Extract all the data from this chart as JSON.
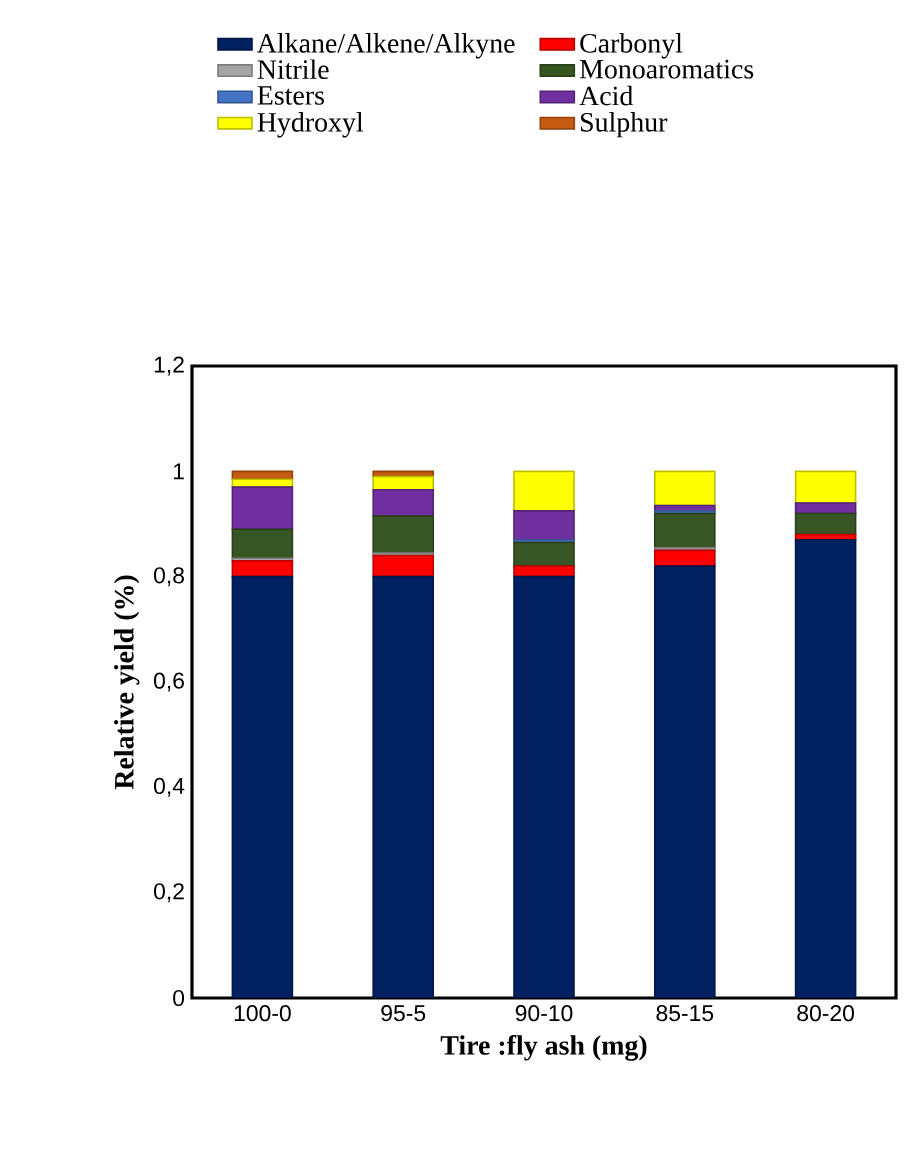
{
  "chart_data": {
    "type": "bar",
    "stacked": true,
    "legend": "top",
    "xlabel": "Tire :fly ash (mg)",
    "ylabel": "Relative yield (%)",
    "categories": [
      "100-0",
      "95-5",
      "90-10",
      "85-15",
      "80-20"
    ],
    "ylim": [
      0,
      1.2
    ],
    "yticks": [
      0,
      {
        "value": 0.2,
        "label": "0,2"
      },
      {
        "value": 0.4,
        "label": "0,4"
      },
      {
        "value": 0.6,
        "label": "0,6"
      },
      {
        "value": 0.8,
        "label": "0,8"
      },
      1,
      {
        "value": 1.2,
        "label": "1,2"
      }
    ],
    "series": [
      {
        "name": "Alkane/Alkene/Alkyne",
        "color": "#002060",
        "values": [
          0.8,
          0.8,
          0.8,
          0.82,
          0.87
        ]
      },
      {
        "name": "Carbonyl",
        "color": "#ff0000",
        "values": [
          0.03,
          0.04,
          0.02,
          0.03,
          0.01
        ]
      },
      {
        "name": "Nitrile",
        "color": "#a5a5a5",
        "values": [
          0.005,
          0.005,
          0,
          0.005,
          0
        ]
      },
      {
        "name": "Monoaromatics",
        "color": "#375623",
        "values": [
          0.055,
          0.07,
          0.045,
          0.065,
          0.04
        ]
      },
      {
        "name": "Esters",
        "color": "#4472c4",
        "values": [
          0,
          0,
          0.005,
          0.005,
          0
        ]
      },
      {
        "name": "Acid",
        "color": "#7030a0",
        "values": [
          0.08,
          0.05,
          0.055,
          0.01,
          0.02
        ]
      },
      {
        "name": "Hydroxyl",
        "color": "#ffff00",
        "values": [
          0.015,
          0.025,
          0.075,
          0.065,
          0.06
        ]
      },
      {
        "name": "Sulphur",
        "color": "#c55a11",
        "values": [
          0.015,
          0.01,
          0,
          0,
          0
        ]
      }
    ]
  }
}
